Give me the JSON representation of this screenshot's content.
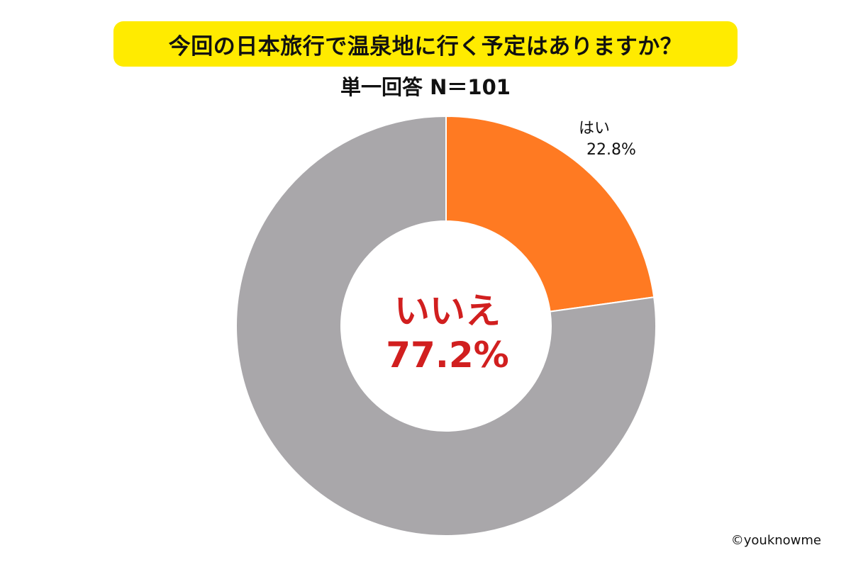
{
  "title": "今回の日本旅行で温泉地に行く予定はありますか？",
  "subtitle": "単一回答 N＝101",
  "credit": "©youknowme",
  "colors": {
    "yes": "#ff7a22",
    "no": "#a9a7aa",
    "highlight_text": "#d11f1f",
    "banner": "#ffeb00"
  },
  "chart_data": {
    "type": "pie",
    "style": "donut",
    "title": "今回の日本旅行で温泉地に行く予定はありますか？",
    "subtitle": "単一回答 N＝101",
    "slices": [
      {
        "label": "はい",
        "value": 22.8,
        "value_label": "22.8%",
        "color": "#ff7a22"
      },
      {
        "label": "いいえ",
        "value": 77.2,
        "value_label": "77.2%",
        "color": "#a9a7aa"
      }
    ],
    "start": "12 o'clock",
    "direction": "clockwise",
    "legend": "none"
  }
}
